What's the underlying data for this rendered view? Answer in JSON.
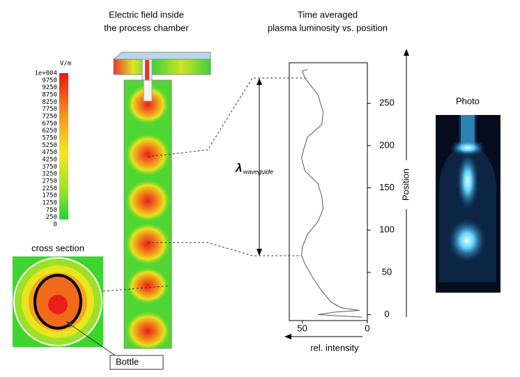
{
  "figure": {
    "field_title": [
      "Electric field inside",
      "the process chamber"
    ],
    "colorbar": {
      "unit": "V/m",
      "labels": [
        "1e+004",
        "9750",
        "9250",
        "8750",
        "8250",
        "7750",
        "7250",
        "6750",
        "6250",
        "5750",
        "5250",
        "4750",
        "4250",
        "3750",
        "3250",
        "2750",
        "2250",
        "1750",
        "1250",
        "750",
        "250",
        "0"
      ]
    },
    "cross_section_label": "cross section",
    "bottle_label": "Bottle",
    "lambda_symbol": "λ",
    "lambda_subscript": "waveguide",
    "photo_label": "Photo"
  },
  "chart_data": {
    "type": "line",
    "title": [
      "Time averaged",
      "plasma luminosity vs. position"
    ],
    "x_label": "rel. intensity",
    "y_label": "Position",
    "color": "#555555",
    "values": [
      46,
      50,
      48,
      38,
      34,
      35,
      46,
      49,
      50.5,
      48,
      38,
      35,
      34,
      38,
      46,
      50,
      50.5,
      48,
      42.5,
      36,
      28,
      20,
      6,
      25,
      38,
      4
    ],
    "positions": [
      290,
      288,
      280,
      260,
      240,
      225,
      210,
      195,
      185,
      170,
      155,
      140,
      125,
      110,
      95,
      80,
      70,
      60,
      45,
      30,
      15,
      8,
      5,
      3,
      0,
      -3
    ],
    "xlim": [
      60,
      0
    ],
    "xticks": [
      50,
      0
    ],
    "ylim": [
      -7,
      298
    ],
    "yticks": [
      0,
      50,
      100,
      150,
      200,
      250
    ]
  }
}
